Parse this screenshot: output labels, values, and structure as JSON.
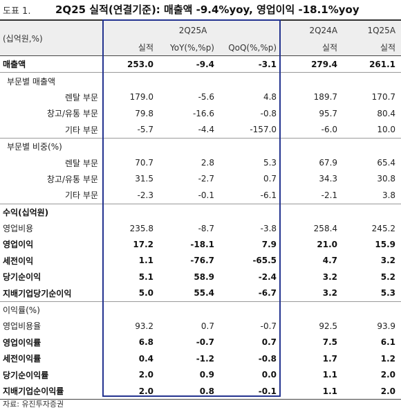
{
  "title": {
    "figure_label": "도표 1.",
    "text": "2Q25 실적(연결기준): 매출액 -9.4%yoy, 영업이익 -18.1%yoy"
  },
  "header": {
    "unit": "(십억원,%)",
    "group_label": "2Q25A",
    "col_prev_year": "2Q24A",
    "col_prev_quarter": "1Q25A",
    "sub_actual": "실적",
    "sub_yoy": "YoY(%,%p)",
    "sub_qoq": "QoQ(%,%p)",
    "sub_actual_2": "실적",
    "sub_actual_3": "실적"
  },
  "rows": [
    {
      "label": "매출액",
      "style": "bold",
      "indent": "l1",
      "sec": true,
      "values": [
        "253.0",
        "-9.4",
        "-3.1",
        "279.4",
        "261.1"
      ]
    },
    {
      "label": "부문별 매출액",
      "style": "normal",
      "indent": "l2",
      "sec": true,
      "values": [
        "",
        "",
        "",
        "",
        ""
      ]
    },
    {
      "label": "렌탈 부문",
      "style": "normal",
      "indent": "l3",
      "sec": false,
      "values": [
        "179.0",
        "-5.6",
        "4.8",
        "189.7",
        "170.7"
      ]
    },
    {
      "label": "창고/유통 부문",
      "style": "normal",
      "indent": "l3",
      "sec": false,
      "values": [
        "79.8",
        "-16.6",
        "-0.8",
        "95.7",
        "80.4"
      ]
    },
    {
      "label": "기타 부문",
      "style": "normal",
      "indent": "l3",
      "sec": false,
      "values": [
        "-5.7",
        "-4.4",
        "-157.0",
        "-6.0",
        "10.0"
      ]
    },
    {
      "label": "부문별 비중(%)",
      "style": "normal",
      "indent": "l2",
      "sec": true,
      "values": [
        "",
        "",
        "",
        "",
        ""
      ]
    },
    {
      "label": "렌탈 부문",
      "style": "normal",
      "indent": "l3",
      "sec": false,
      "values": [
        "70.7",
        "2.8",
        "5.3",
        "67.9",
        "65.4"
      ]
    },
    {
      "label": "창고/유통 부문",
      "style": "normal",
      "indent": "l3",
      "sec": false,
      "values": [
        "31.5",
        "-2.7",
        "0.7",
        "34.3",
        "30.8"
      ]
    },
    {
      "label": "기타 부문",
      "style": "normal",
      "indent": "l3",
      "sec": false,
      "values": [
        "-2.3",
        "-0.1",
        "-6.1",
        "-2.1",
        "3.8"
      ]
    },
    {
      "label": "수익(십억원)",
      "style": "bold",
      "indent": "l1",
      "sec": true,
      "values": [
        "",
        "",
        "",
        "",
        ""
      ]
    },
    {
      "label": "영업비용",
      "style": "normal",
      "indent": "l1",
      "sec": false,
      "values": [
        "235.8",
        "-8.7",
        "-3.8",
        "258.4",
        "245.2"
      ]
    },
    {
      "label": "영업이익",
      "style": "bold",
      "indent": "l1",
      "sec": false,
      "values": [
        "17.2",
        "-18.1",
        "7.9",
        "21.0",
        "15.9"
      ]
    },
    {
      "label": "세전이익",
      "style": "bold",
      "indent": "l1",
      "sec": false,
      "values": [
        "1.1",
        "-76.7",
        "-65.5",
        "4.7",
        "3.2"
      ]
    },
    {
      "label": "당기순이익",
      "style": "bold",
      "indent": "l1",
      "sec": false,
      "values": [
        "5.1",
        "58.9",
        "-2.4",
        "3.2",
        "5.2"
      ]
    },
    {
      "label": "지배기업당기순이익",
      "style": "bold",
      "indent": "l1",
      "sec": false,
      "values": [
        "5.0",
        "55.4",
        "-6.7",
        "3.2",
        "5.3"
      ]
    },
    {
      "label": "이익률(%)",
      "style": "normal",
      "indent": "l1",
      "sec": true,
      "values": [
        "",
        "",
        "",
        "",
        ""
      ]
    },
    {
      "label": "영업비용율",
      "style": "normal",
      "indent": "l1",
      "sec": false,
      "values": [
        "93.2",
        "0.7",
        "-0.7",
        "92.5",
        "93.9"
      ]
    },
    {
      "label": "영업이익률",
      "style": "bold",
      "indent": "l1",
      "sec": false,
      "values": [
        "6.8",
        "-0.7",
        "0.7",
        "7.5",
        "6.1"
      ]
    },
    {
      "label": "세전이익률",
      "style": "bold",
      "indent": "l1",
      "sec": false,
      "values": [
        "0.4",
        "-1.2",
        "-0.8",
        "1.7",
        "1.2"
      ]
    },
    {
      "label": "당기순이익률",
      "style": "bold",
      "indent": "l1",
      "sec": false,
      "values": [
        "2.0",
        "0.9",
        "0.0",
        "1.1",
        "2.0"
      ]
    },
    {
      "label": "지배기업순이익률",
      "style": "bold",
      "indent": "l1",
      "sec": false,
      "values": [
        "2.0",
        "0.8",
        "-0.1",
        "1.1",
        "2.0"
      ]
    }
  ],
  "source": "자료: 유진투자증권",
  "colors": {
    "highlight_border": "#23338f",
    "header_bg": "#eeeeee"
  }
}
